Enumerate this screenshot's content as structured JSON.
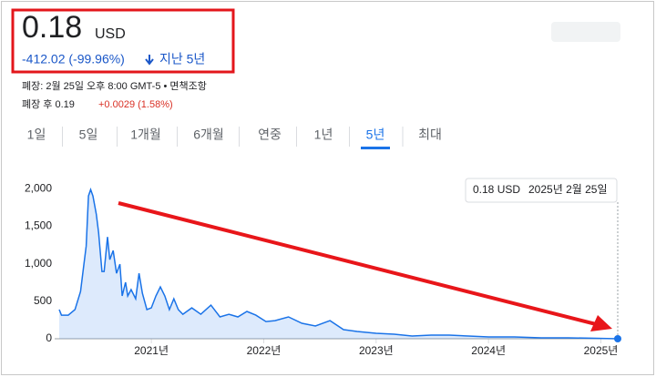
{
  "header": {
    "price": "0.18",
    "currency": "USD",
    "change": "-412.02 (-99.96%)",
    "period": "지난 5년",
    "close_info": "폐장: 2월 25일 오후 8:00 GMT-5 • 면책조항",
    "after_hours_label": "폐장 후 0.19",
    "after_hours_change": "+0.0029 (1.58%)"
  },
  "tabs": [
    "1일",
    "5일",
    "1개월",
    "6개월",
    "연중",
    "1년",
    "5년",
    "최대"
  ],
  "selected_tab": 6,
  "tooltip": {
    "value": "0.18 USD",
    "date": "2025년 2월 25일"
  },
  "chart_data": {
    "type": "line",
    "color": "#1a73e8",
    "x": [
      2020.18,
      2020.2,
      2020.26,
      2020.32,
      2020.37,
      2020.4,
      2020.42,
      2020.44,
      2020.46,
      2020.48,
      2020.51,
      2020.53,
      2020.56,
      2020.58,
      2020.61,
      2020.63,
      2020.66,
      2020.69,
      2020.72,
      2020.74,
      2020.77,
      2020.79,
      2020.82,
      2020.86,
      2020.89,
      2020.92,
      2020.96,
      2021.0,
      2021.04,
      2021.08,
      2021.12,
      2021.16,
      2021.2,
      2021.24,
      2021.28,
      2021.36,
      2021.44,
      2021.53,
      2021.61,
      2021.69,
      2021.77,
      2021.85,
      2021.93,
      2022.02,
      2022.1,
      2022.22,
      2022.34,
      2022.46,
      2022.59,
      2022.71,
      2022.83,
      2023.0,
      2023.16,
      2023.32,
      2023.49,
      2023.65,
      2023.82,
      2024.0,
      2024.23,
      2024.47,
      2024.71,
      2024.96,
      2025.15
    ],
    "values": [
      388,
      315,
      315,
      388,
      630,
      994,
      1236,
      1903,
      1988,
      1903,
      1660,
      1418,
      897,
      897,
      1357,
      1055,
      1176,
      873,
      994,
      570,
      752,
      570,
      655,
      533,
      873,
      606,
      388,
      412,
      570,
      691,
      570,
      388,
      533,
      388,
      327,
      412,
      327,
      448,
      291,
      327,
      291,
      364,
      315,
      230,
      242,
      291,
      206,
      170,
      242,
      121,
      97,
      73,
      61,
      36,
      48,
      48,
      36,
      24,
      24,
      12,
      12,
      6,
      0.18
    ],
    "xlim": [
      2020.18,
      2025.15
    ],
    "xticks": [
      {
        "value": 2021,
        "label": "2021년"
      },
      {
        "value": 2022,
        "label": "2022년"
      },
      {
        "value": 2023,
        "label": "2023년"
      },
      {
        "value": 2024,
        "label": "2024년"
      },
      {
        "value": 2025,
        "label": "2025년"
      }
    ],
    "ylim": [
      0,
      2100
    ],
    "yticks": [
      0,
      500,
      {
        "value": 1000,
        "label": "1,000"
      },
      {
        "value": 1500,
        "label": "1,500"
      },
      {
        "value": 2000,
        "label": "2,000"
      }
    ]
  }
}
